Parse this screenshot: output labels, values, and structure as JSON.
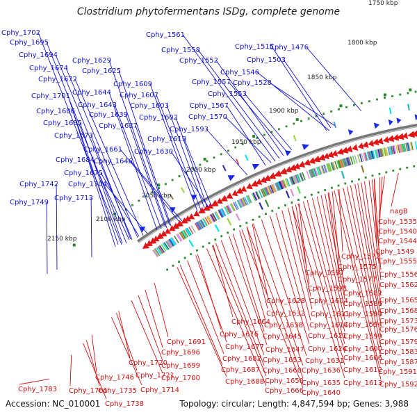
{
  "title": "Clostridium phytofermentans ISDg, complete genome",
  "footer": {
    "accession": "Accession: NC_010001",
    "summary": "Topology: circular; Length: 4,847,594 bp; Genes: 3,988"
  },
  "colors": {
    "forward_label": "#1010d0",
    "reverse_label": "#d01010",
    "forward_gene": "#1a2ae8",
    "reverse_gene": "#e01515",
    "backbone": "#777777",
    "tick": "#2a8a2a",
    "kbp_label": "#222222"
  },
  "ticks": [
    "1750 kbp",
    "1800 kbp",
    "1850 kbp",
    "1900 kbp",
    "1950 kbp",
    "2000 kbp",
    "2050 kbp",
    "2100 kbp",
    "2150 kbp"
  ],
  "forward_labels": [
    "Cphy_1702",
    "Cphy_1695",
    "Cphy_1694",
    "Cphy_1674",
    "Cphy_1672",
    "Cphy_1701",
    "Cphy_1686",
    "Cphy_1685",
    "Cphy_1684",
    "Cphy_1673",
    "Cphy_1675",
    "Cphy_1742",
    "Cphy_1749",
    "Cphy_1704",
    "Cphy_1713",
    "Cphy_1629",
    "Cphy_1625",
    "Cphy_1644",
    "Cphy_1643",
    "Cphy_1639",
    "Cphy_1637",
    "Cphy_1661",
    "Cphy_1646",
    "Cphy_1609",
    "Cphy_1607",
    "Cphy_1603",
    "Cphy_1602",
    "Cphy_1619",
    "Cphy_1630",
    "Cphy_1561",
    "Cphy_1558",
    "Cphy_1552",
    "Cphy_1557",
    "Cphy_1546",
    "Cphy_1553",
    "Cphy_1515",
    "Cphy_1503",
    "Cphy_1528",
    "Cphy_1476",
    "Cphy_1567",
    "Cphy_1570",
    "Cphy_1593"
  ],
  "reverse_labels": [
    "nagB",
    "Cphy_1535",
    "Cphy_1540",
    "Cphy_1544",
    "Cphy_1549",
    "Cphy_1555",
    "Cphy_1556",
    "Cphy_1562",
    "Cphy_1565",
    "Cphy_1568",
    "Cphy_1573",
    "Cphy_1576",
    "Cphy_1579",
    "Cphy_1583",
    "Cphy_1587",
    "Cphy_1591",
    "Cphy_1592",
    "Cphy_1572",
    "Cphy_1575",
    "Cphy_1577",
    "Cphy_1582",
    "Cphy_1586",
    "Cphy_1590",
    "Cphy_1594",
    "Cphy_1599",
    "Cphy_1600",
    "Cphy_1606",
    "Cphy_1612",
    "Cphy_1613",
    "Cphy_1597",
    "Cphy_1598",
    "Cphy_1604",
    "Cphy_1611",
    "Cphy_1614",
    "Cphy_1621",
    "Cphy_1624",
    "Cphy_1631",
    "Cphy_1636",
    "Cphy_1635",
    "Cphy_1640",
    "Cphy_1628",
    "Cphy_1632",
    "Cphy_1638",
    "Cphy_1645",
    "Cphy_1647",
    "Cphy_1653",
    "Cphy_1660",
    "Cphy_1658",
    "Cphy_1666",
    "Cphy_1664",
    "Cphy_1676",
    "Cphy_1677",
    "Cphy_1682",
    "Cphy_1687",
    "Cphy_1688",
    "Cphy_1691",
    "Cphy_1696",
    "Cphy_1699",
    "Cphy_1700",
    "Cphy_1720",
    "Cphy_1721",
    "Cphy_1714",
    "Cphy_1746",
    "Cphy_1735",
    "Cphy_1738",
    "Cphy_1761",
    "Cphy_1783"
  ]
}
